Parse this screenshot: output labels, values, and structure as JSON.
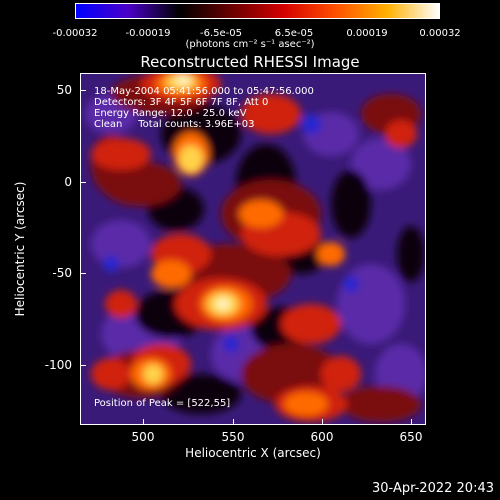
{
  "colorbar": {
    "ticks": [
      "-0.00032",
      "-0.00019",
      "-6.5e-05",
      "6.5e-05",
      "0.00019",
      "0.00032"
    ],
    "units": "(photons cm⁻² s⁻¹ asec⁻²)",
    "colors": [
      "#0000ff",
      "#4a00c8",
      "#000000",
      "#6a0000",
      "#d40000",
      "#ff5000",
      "#ffb000",
      "#ffffff"
    ]
  },
  "title": "Reconstructed RHESSI Image",
  "info": {
    "line1": "18-May-2004 05:41:56.000 to 05:47:56.000",
    "line2": "Detectors: 3F 4F 5F 6F 7F 8F, Att 0",
    "line3": "Energy Range: 12.0 - 25.0 keV",
    "line4": "Clean     Total counts: 3.96E+03"
  },
  "peak": "Position of Peak = [522,55]",
  "axes": {
    "xlabel": "Heliocentric X (arcsec)",
    "ylabel": "Heliocentric Y (arcsec)",
    "xticks": [
      "500",
      "550",
      "600",
      "650"
    ],
    "yticks": [
      "50",
      "0",
      "-50",
      "-100"
    ],
    "xrange": [
      463,
      652
    ],
    "yrange": [
      -133,
      60
    ]
  },
  "footer_date": "30-Apr-2022 20:43",
  "palette": {
    "background": "#3a1a78",
    "violet": "#5a2aa8",
    "blue": "#2828d0",
    "dark": "#0a0510",
    "darkred": "#7a0a08",
    "red": "#d02010",
    "orange": "#ff6a00",
    "yellow": "#ffd24a",
    "white": "#fff6c0"
  }
}
